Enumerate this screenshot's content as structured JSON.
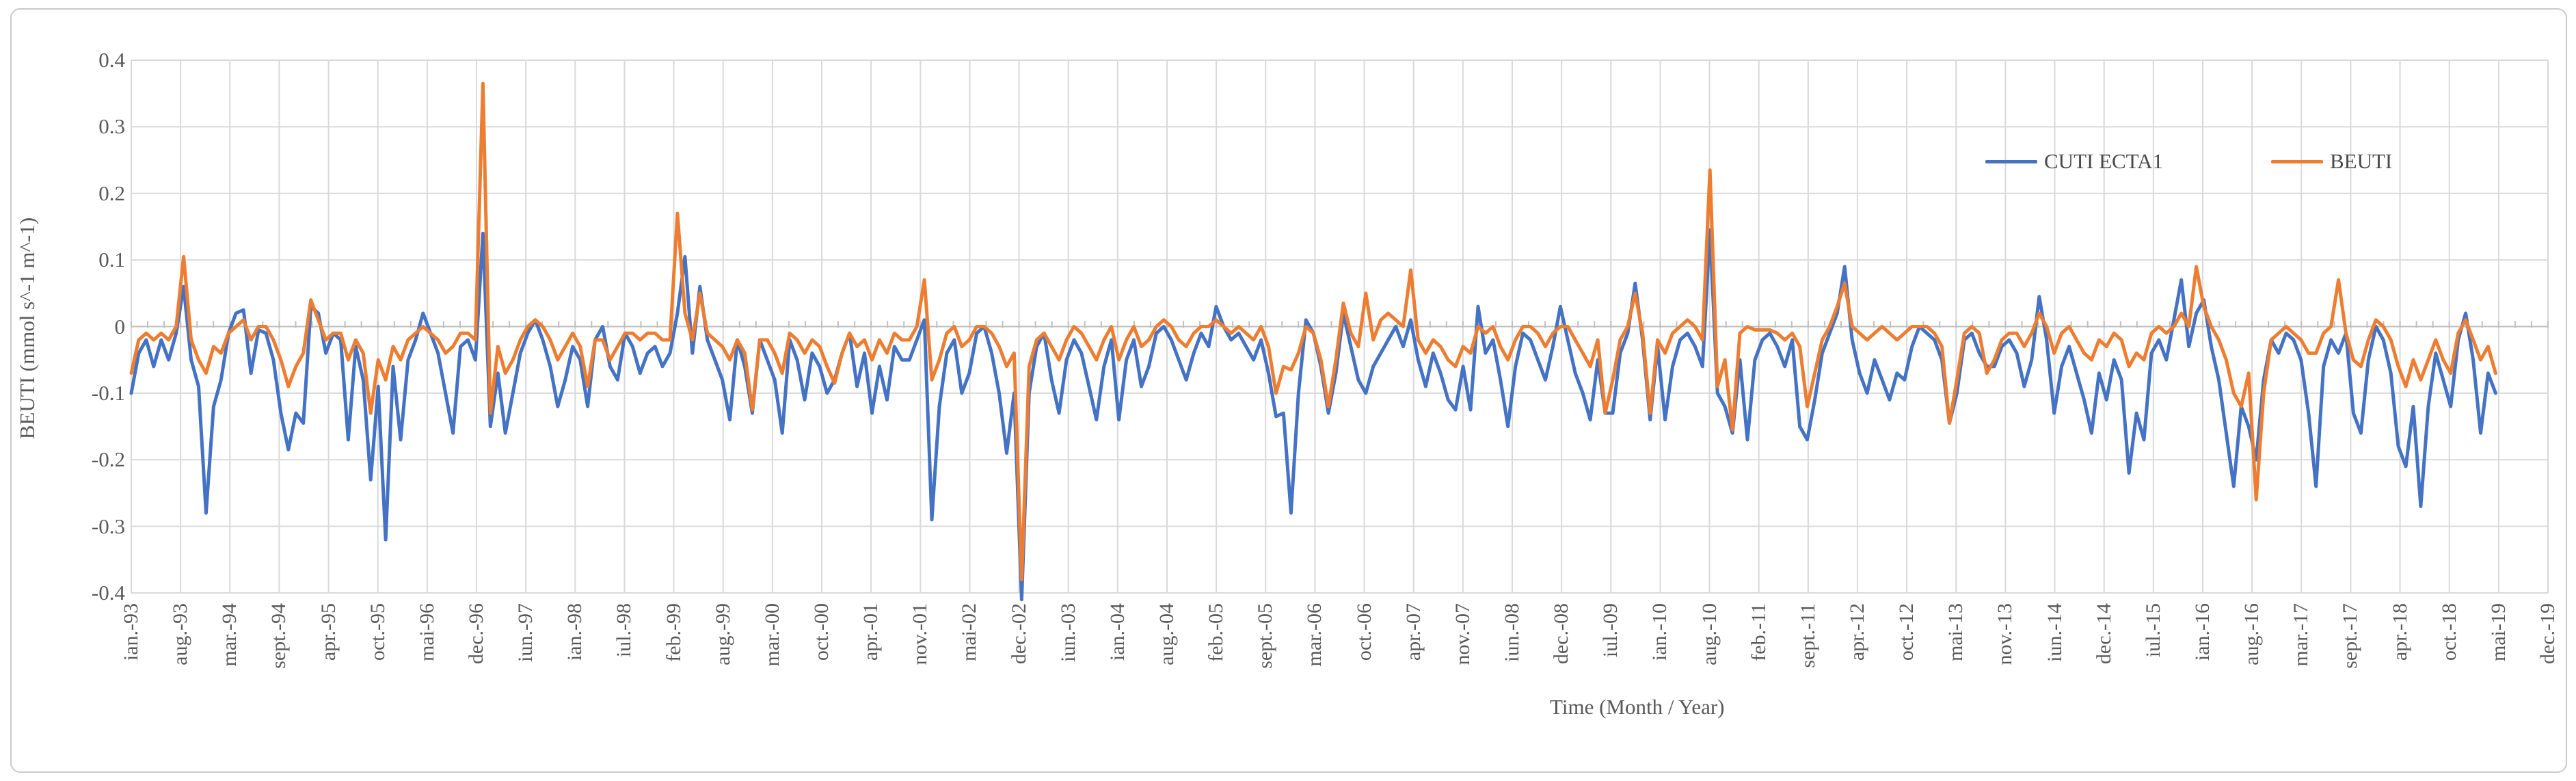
{
  "chart_data": {
    "type": "line",
    "xlabel": "Time (Month / Year)",
    "ylabel": "BEUTI (mmol s^-1 m^-1)",
    "ylim": [
      -0.4,
      0.4
    ],
    "ytick_step": 0.1,
    "y_tick_labels": [
      "0.4",
      "0.3",
      "0.2",
      "0.1",
      "0",
      "-0.1",
      "-0.2",
      "-0.3",
      "-0.4"
    ],
    "x_tick_labels": [
      "ian.-93",
      "aug.-93",
      "mar.-94",
      "sept.-94",
      "apr.-95",
      "oct.-95",
      "mai-96",
      "dec.-96",
      "iun.-97",
      "ian.-98",
      "iul.-98",
      "feb.-99",
      "aug.-99",
      "mar.-00",
      "oct.-00",
      "apr.-01",
      "nov.-01",
      "mai-02",
      "dec.-02",
      "iun.-03",
      "ian.-04",
      "aug.-04",
      "feb.-05",
      "sept.-05",
      "mar.-06",
      "oct.-06",
      "apr.-07",
      "nov.-07",
      "iun.-08",
      "dec.-08",
      "iul.-09",
      "ian.-10",
      "aug.-10",
      "feb.-11",
      "sept.-11",
      "apr.-12",
      "oct.-12",
      "mai-13",
      "nov.-13",
      "iun.-14",
      "dec.-14",
      "iul.-15",
      "ian.-16",
      "aug.-16",
      "mar.-17",
      "sept.-17",
      "apr.-18",
      "oct.-18",
      "mai-19",
      "dec.-19"
    ],
    "x_first_month": "ian.-93",
    "x_last_data_month": "mai-19",
    "x_axis_total_months": 324,
    "grid": true,
    "legend_position": "top-right-inside",
    "series": [
      {
        "name": "CUTI ECTA1",
        "color": "#4472C4",
        "values": [
          -0.1,
          -0.04,
          -0.02,
          -0.06,
          -0.02,
          -0.05,
          -0.01,
          0.06,
          -0.05,
          -0.09,
          -0.28,
          -0.12,
          -0.08,
          -0.01,
          0.02,
          0.025,
          -0.07,
          -0.005,
          -0.01,
          -0.05,
          -0.13,
          -0.185,
          -0.13,
          -0.145,
          0.03,
          0.02,
          -0.04,
          -0.01,
          -0.02,
          -0.17,
          -0.03,
          -0.08,
          -0.23,
          -0.09,
          -0.32,
          -0.06,
          -0.17,
          -0.05,
          -0.02,
          0.02,
          -0.01,
          -0.04,
          -0.1,
          -0.16,
          -0.03,
          -0.02,
          -0.05,
          0.14,
          -0.15,
          -0.07,
          -0.16,
          -0.1,
          -0.04,
          -0.01,
          0.01,
          -0.02,
          -0.06,
          -0.12,
          -0.08,
          -0.03,
          -0.05,
          -0.12,
          -0.02,
          0.0,
          -0.06,
          -0.08,
          -0.01,
          -0.03,
          -0.07,
          -0.04,
          -0.03,
          -0.06,
          -0.04,
          0.02,
          0.105,
          -0.04,
          0.06,
          -0.02,
          -0.05,
          -0.08,
          -0.14,
          -0.02,
          -0.06,
          -0.13,
          -0.02,
          -0.05,
          -0.08,
          -0.16,
          -0.02,
          -0.05,
          -0.11,
          -0.04,
          -0.06,
          -0.1,
          -0.08,
          -0.04,
          -0.01,
          -0.09,
          -0.04,
          -0.13,
          -0.06,
          -0.11,
          -0.03,
          -0.05,
          -0.05,
          -0.02,
          0.01,
          -0.29,
          -0.12,
          -0.04,
          -0.02,
          -0.1,
          -0.07,
          -0.01,
          0.0,
          -0.04,
          -0.1,
          -0.19,
          -0.1,
          -0.41,
          -0.1,
          -0.03,
          -0.01,
          -0.08,
          -0.13,
          -0.05,
          -0.02,
          -0.04,
          -0.09,
          -0.14,
          -0.06,
          -0.02,
          -0.14,
          -0.05,
          -0.02,
          -0.09,
          -0.06,
          -0.01,
          0.0,
          -0.02,
          -0.05,
          -0.08,
          -0.04,
          -0.01,
          -0.03,
          0.03,
          0.0,
          -0.02,
          -0.01,
          -0.03,
          -0.05,
          -0.02,
          -0.07,
          -0.135,
          -0.13,
          -0.28,
          -0.1,
          0.01,
          -0.01,
          -0.06,
          -0.13,
          -0.07,
          0.02,
          -0.03,
          -0.08,
          -0.1,
          -0.06,
          -0.04,
          -0.02,
          0.0,
          -0.03,
          0.01,
          -0.05,
          -0.09,
          -0.04,
          -0.07,
          -0.11,
          -0.125,
          -0.06,
          -0.125,
          0.03,
          -0.04,
          -0.02,
          -0.08,
          -0.15,
          -0.06,
          -0.01,
          -0.02,
          -0.05,
          -0.08,
          -0.03,
          0.03,
          -0.02,
          -0.07,
          -0.1,
          -0.14,
          -0.05,
          -0.13,
          -0.13,
          -0.04,
          -0.01,
          0.065,
          -0.02,
          -0.14,
          -0.03,
          -0.14,
          -0.06,
          -0.02,
          -0.01,
          -0.03,
          -0.06,
          0.145,
          -0.1,
          -0.12,
          -0.16,
          -0.05,
          -0.17,
          -0.05,
          -0.02,
          -0.01,
          -0.03,
          -0.06,
          -0.02,
          -0.15,
          -0.17,
          -0.11,
          -0.04,
          -0.01,
          0.02,
          0.09,
          -0.02,
          -0.07,
          -0.1,
          -0.05,
          -0.08,
          -0.11,
          -0.07,
          -0.08,
          -0.03,
          0.0,
          -0.01,
          -0.02,
          -0.05,
          -0.145,
          -0.1,
          -0.02,
          -0.01,
          -0.04,
          -0.06,
          -0.06,
          -0.03,
          -0.02,
          -0.04,
          -0.09,
          -0.05,
          0.045,
          -0.02,
          -0.13,
          -0.06,
          -0.03,
          -0.07,
          -0.11,
          -0.16,
          -0.07,
          -0.11,
          -0.05,
          -0.08,
          -0.22,
          -0.13,
          -0.17,
          -0.04,
          -0.02,
          -0.05,
          0.01,
          0.07,
          -0.03,
          0.02,
          0.04,
          -0.03,
          -0.08,
          -0.16,
          -0.24,
          -0.12,
          -0.15,
          -0.2,
          -0.08,
          -0.02,
          -0.04,
          -0.01,
          -0.02,
          -0.05,
          -0.13,
          -0.24,
          -0.06,
          -0.02,
          -0.04,
          -0.01,
          -0.13,
          -0.16,
          -0.05,
          0.0,
          -0.02,
          -0.07,
          -0.18,
          -0.21,
          -0.12,
          -0.27,
          -0.12,
          -0.04,
          -0.08,
          -0.12,
          -0.02,
          0.02,
          -0.05,
          -0.16,
          -0.07,
          -0.1
        ]
      },
      {
        "name": "BEUTI",
        "color": "#ED7D31",
        "values": [
          -0.07,
          -0.02,
          -0.01,
          -0.02,
          -0.01,
          -0.02,
          0.0,
          0.105,
          -0.02,
          -0.05,
          -0.07,
          -0.03,
          -0.04,
          -0.01,
          0.0,
          0.01,
          -0.02,
          0.0,
          0.0,
          -0.02,
          -0.05,
          -0.09,
          -0.06,
          -0.04,
          0.04,
          0.01,
          -0.02,
          -0.01,
          -0.01,
          -0.05,
          -0.02,
          -0.04,
          -0.13,
          -0.05,
          -0.08,
          -0.03,
          -0.05,
          -0.02,
          -0.01,
          0.0,
          -0.01,
          -0.02,
          -0.04,
          -0.03,
          -0.01,
          -0.01,
          -0.02,
          0.365,
          -0.13,
          -0.03,
          -0.07,
          -0.05,
          -0.02,
          0.0,
          0.01,
          0.0,
          -0.02,
          -0.05,
          -0.03,
          -0.01,
          -0.03,
          -0.09,
          -0.02,
          -0.02,
          -0.05,
          -0.03,
          -0.01,
          -0.01,
          -0.02,
          -0.01,
          -0.01,
          -0.02,
          -0.02,
          0.17,
          0.02,
          -0.02,
          0.05,
          -0.01,
          -0.02,
          -0.03,
          -0.05,
          -0.02,
          -0.04,
          -0.125,
          -0.02,
          -0.02,
          -0.04,
          -0.07,
          -0.01,
          -0.02,
          -0.04,
          -0.02,
          -0.03,
          -0.06,
          -0.085,
          -0.04,
          -0.01,
          -0.03,
          -0.02,
          -0.05,
          -0.02,
          -0.04,
          -0.01,
          -0.02,
          -0.02,
          0.0,
          0.07,
          -0.08,
          -0.05,
          -0.01,
          0.0,
          -0.03,
          -0.02,
          0.0,
          0.0,
          -0.01,
          -0.03,
          -0.06,
          -0.04,
          -0.38,
          -0.06,
          -0.02,
          -0.01,
          -0.03,
          -0.05,
          -0.02,
          0.0,
          -0.01,
          -0.03,
          -0.05,
          -0.02,
          0.0,
          -0.05,
          -0.02,
          0.0,
          -0.03,
          -0.02,
          0.0,
          0.01,
          0.0,
          -0.02,
          -0.03,
          -0.01,
          0.0,
          0.0,
          0.01,
          0.0,
          -0.01,
          0.0,
          -0.01,
          -0.02,
          0.0,
          -0.03,
          -0.1,
          -0.06,
          -0.065,
          -0.04,
          0.0,
          -0.01,
          -0.05,
          -0.12,
          -0.05,
          0.035,
          -0.01,
          -0.03,
          0.05,
          -0.02,
          0.01,
          0.02,
          0.01,
          0.0,
          0.085,
          -0.02,
          -0.04,
          -0.02,
          -0.03,
          -0.05,
          -0.06,
          -0.03,
          -0.04,
          0.0,
          -0.01,
          0.0,
          -0.03,
          -0.05,
          -0.02,
          0.0,
          0.0,
          -0.01,
          -0.03,
          -0.01,
          0.0,
          0.0,
          -0.02,
          -0.04,
          -0.06,
          -0.02,
          -0.13,
          -0.08,
          -0.02,
          0.0,
          0.05,
          -0.01,
          -0.13,
          -0.02,
          -0.04,
          -0.01,
          0.0,
          0.01,
          0.0,
          -0.02,
          0.235,
          -0.09,
          -0.05,
          -0.155,
          -0.01,
          0.0,
          -0.005,
          -0.005,
          -0.005,
          -0.01,
          -0.02,
          -0.01,
          -0.03,
          -0.12,
          -0.07,
          -0.02,
          0.0,
          0.03,
          0.065,
          0.0,
          -0.01,
          -0.02,
          -0.01,
          0.0,
          -0.01,
          -0.02,
          -0.01,
          0.0,
          0.0,
          0.0,
          -0.01,
          -0.03,
          -0.145,
          -0.08,
          -0.01,
          0.0,
          -0.01,
          -0.07,
          -0.05,
          -0.02,
          -0.01,
          -0.01,
          -0.03,
          -0.01,
          0.02,
          0.0,
          -0.04,
          -0.01,
          0.0,
          -0.02,
          -0.04,
          -0.05,
          -0.02,
          -0.03,
          -0.01,
          -0.02,
          -0.06,
          -0.04,
          -0.05,
          -0.01,
          0.0,
          -0.01,
          0.0,
          0.02,
          0.0,
          0.09,
          0.03,
          0.0,
          -0.02,
          -0.05,
          -0.1,
          -0.12,
          -0.07,
          -0.26,
          -0.1,
          -0.02,
          -0.01,
          0.0,
          -0.01,
          -0.02,
          -0.04,
          -0.04,
          -0.01,
          0.0,
          0.07,
          -0.01,
          -0.05,
          -0.06,
          -0.02,
          0.01,
          0.0,
          -0.02,
          -0.06,
          -0.09,
          -0.05,
          -0.08,
          -0.05,
          -0.02,
          -0.05,
          -0.07,
          -0.01,
          0.01,
          -0.02,
          -0.05,
          -0.03,
          -0.07
        ]
      }
    ]
  },
  "colors": {
    "grid": "#D9D9D9",
    "zero_line": "#BFBFBF",
    "axis_text": "#595959",
    "frame_border": "#CBCBCB",
    "background": "#FFFFFF",
    "series_blue": "#4472C4",
    "series_orange": "#ED7D31"
  }
}
